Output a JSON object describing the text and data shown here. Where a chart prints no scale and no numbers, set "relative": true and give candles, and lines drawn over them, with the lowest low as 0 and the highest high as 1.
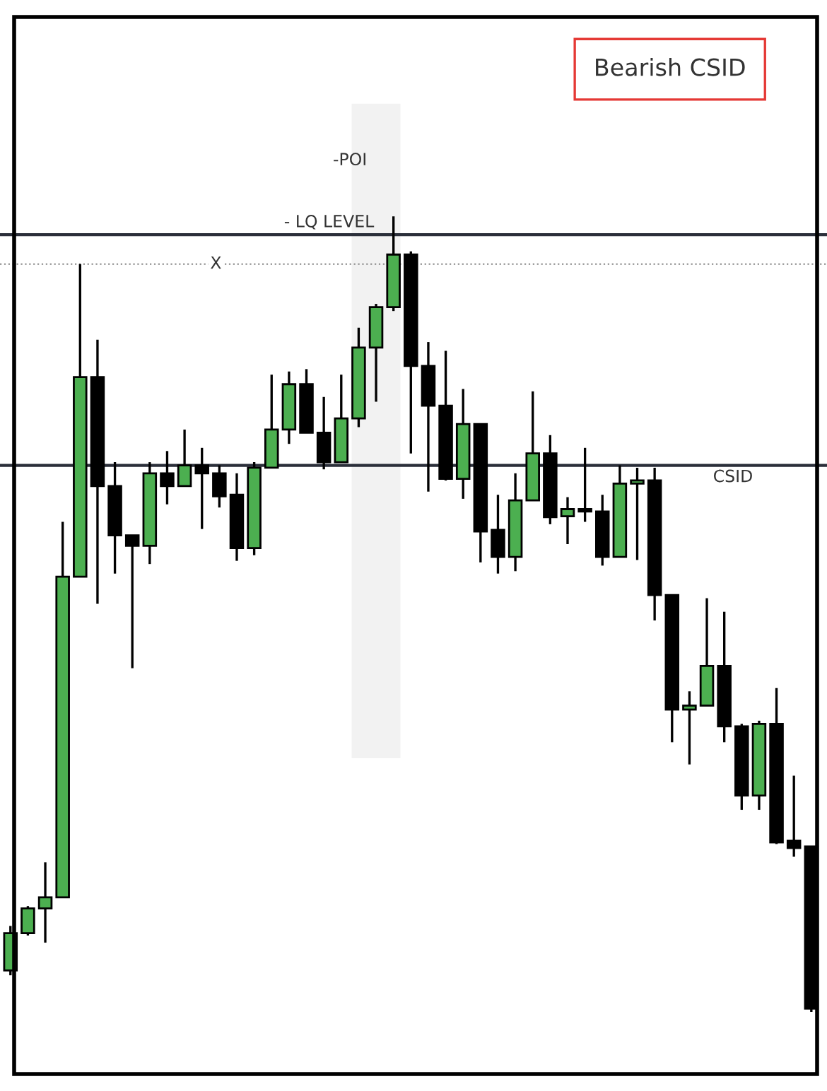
{
  "chart_data": {
    "type": "candlestick",
    "title": "Bearish CSID",
    "relative": true,
    "categories": [
      null,
      null,
      null,
      null,
      null,
      null,
      null,
      null,
      null,
      null,
      null,
      null,
      null,
      null,
      null,
      null,
      null,
      null,
      null,
      null,
      null,
      null,
      null,
      null,
      null,
      null,
      null,
      null,
      null,
      null,
      null,
      null,
      null,
      null,
      null,
      null,
      null,
      null,
      null,
      null,
      null,
      null,
      null,
      null,
      null,
      null,
      null
    ],
    "ohlc": [
      [
        0.052,
        0.108,
        0.046,
        0.099
      ],
      [
        0.099,
        0.133,
        0.096,
        0.13
      ],
      [
        0.13,
        0.188,
        0.087,
        0.144
      ],
      [
        0.144,
        0.616,
        0.144,
        0.547
      ],
      [
        0.547,
        0.94,
        0.547,
        0.798
      ],
      [
        0.798,
        0.845,
        0.513,
        0.661
      ],
      [
        0.661,
        0.691,
        0.551,
        0.599
      ],
      [
        0.599,
        0.599,
        0.432,
        0.586
      ],
      [
        0.586,
        0.691,
        0.563,
        0.677
      ],
      [
        0.677,
        0.705,
        0.638,
        0.661
      ],
      [
        0.661,
        0.732,
        0.661,
        0.687
      ],
      [
        0.687,
        0.709,
        0.607,
        0.677
      ],
      [
        0.677,
        0.687,
        0.634,
        0.648
      ],
      [
        0.65,
        0.677,
        0.567,
        0.583
      ],
      [
        0.583,
        0.691,
        0.574,
        0.684
      ],
      [
        0.684,
        0.801,
        0.684,
        0.732
      ],
      [
        0.732,
        0.805,
        0.714,
        0.789
      ],
      [
        0.789,
        0.808,
        0.728,
        0.728
      ],
      [
        0.728,
        0.773,
        0.682,
        0.691
      ],
      [
        0.691,
        0.801,
        0.691,
        0.746
      ],
      [
        0.746,
        0.86,
        0.735,
        0.835
      ],
      [
        0.835,
        0.89,
        0.767,
        0.886
      ],
      [
        0.886,
        1.0,
        0.881,
        0.952
      ],
      [
        0.952,
        0.956,
        0.702,
        0.812
      ],
      [
        0.812,
        0.842,
        0.654,
        0.762
      ],
      [
        0.762,
        0.831,
        0.668,
        0.67
      ],
      [
        0.67,
        0.783,
        0.645,
        0.739
      ],
      [
        0.739,
        0.739,
        0.565,
        0.604
      ],
      [
        0.606,
        0.65,
        0.551,
        0.572
      ],
      [
        0.572,
        0.677,
        0.554,
        0.643
      ],
      [
        0.643,
        0.78,
        0.643,
        0.702
      ],
      [
        0.702,
        0.725,
        0.613,
        0.622
      ],
      [
        0.623,
        0.647,
        0.588,
        0.632
      ],
      [
        0.632,
        0.709,
        0.616,
        0.629
      ],
      [
        0.629,
        0.65,
        0.561,
        0.572
      ],
      [
        0.572,
        0.687,
        0.572,
        0.664
      ],
      [
        0.664,
        0.684,
        0.568,
        0.668
      ],
      [
        0.668,
        0.684,
        0.492,
        0.524
      ],
      [
        0.524,
        0.524,
        0.339,
        0.38
      ],
      [
        0.38,
        0.403,
        0.311,
        0.385
      ],
      [
        0.385,
        0.52,
        0.384,
        0.435
      ],
      [
        0.435,
        0.503,
        0.339,
        0.359
      ],
      [
        0.359,
        0.362,
        0.254,
        0.272
      ],
      [
        0.272,
        0.366,
        0.254,
        0.362
      ],
      [
        0.362,
        0.407,
        0.211,
        0.213
      ],
      [
        0.215,
        0.297,
        0.195,
        0.206
      ],
      [
        0.208,
        0.208,
        0.0,
        0.004
      ]
    ],
    "colors": [
      "#4caf50",
      "#4caf50",
      "#4caf50",
      "#4caf50",
      "#4caf50",
      "#000000",
      "#000000",
      "#000000",
      "#4caf50",
      "#000000",
      "#4caf50",
      "#000000",
      "#000000",
      "#000000",
      "#4caf50",
      "#4caf50",
      "#4caf50",
      "#000000",
      "#000000",
      "#4caf50",
      "#4caf50",
      "#4caf50",
      "#4caf50",
      "#000000",
      "#000000",
      "#000000",
      "#4caf50",
      "#000000",
      "#000000",
      "#4caf50",
      "#4caf50",
      "#000000",
      "#4caf50",
      "#000000",
      "#000000",
      "#4caf50",
      "#4caf50",
      "#000000",
      "#000000",
      "#4caf50",
      "#4caf50",
      "#000000",
      "#000000",
      "#4caf50",
      "#000000",
      "#000000",
      "#000000"
    ],
    "ref_lines": [
      {
        "axis": "y",
        "value": 0.977,
        "label": "- LQ LEVEL",
        "color": "#2b2f3a",
        "line_style": "solid"
      },
      {
        "axis": "y",
        "value": 0.94,
        "label": "X",
        "color": "#888888",
        "line_style": "dotted"
      },
      {
        "axis": "y",
        "value": 0.687,
        "label": "CSID",
        "color": "#2b2f3a",
        "line_style": "solid"
      }
    ],
    "annotations": [
      "-POI"
    ],
    "grid": false,
    "legend": false
  }
}
